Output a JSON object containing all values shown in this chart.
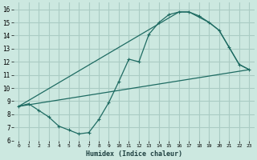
{
  "bg_color": "#cce8e0",
  "grid_color": "#aaccc4",
  "line_color": "#1e6b62",
  "xlabel": "Humidex (Indice chaleur)",
  "xlim": [
    -0.5,
    23.5
  ],
  "ylim": [
    6,
    16.5
  ],
  "xticks": [
    0,
    1,
    2,
    3,
    4,
    5,
    6,
    7,
    8,
    9,
    10,
    11,
    12,
    13,
    14,
    15,
    16,
    17,
    18,
    19,
    20,
    21,
    22,
    23
  ],
  "yticks": [
    6,
    7,
    8,
    9,
    10,
    11,
    12,
    13,
    14,
    15,
    16
  ],
  "line1_x": [
    0,
    1,
    2,
    3,
    4,
    5,
    6,
    7,
    8,
    9,
    10,
    11,
    12,
    13,
    14,
    15,
    16,
    17,
    18,
    19,
    20,
    21,
    22,
    23
  ],
  "line1_y": [
    8.6,
    8.8,
    8.3,
    7.8,
    7.1,
    6.8,
    6.5,
    6.6,
    7.6,
    8.9,
    10.5,
    12.2,
    12.0,
    14.1,
    15.0,
    15.6,
    15.8,
    15.8,
    15.5,
    15.0,
    14.4,
    13.1,
    11.8,
    11.4
  ],
  "line2_x": [
    0,
    16,
    17,
    19,
    20,
    21,
    22,
    23
  ],
  "line2_y": [
    8.6,
    15.8,
    15.8,
    15.0,
    14.4,
    13.1,
    11.8,
    11.4
  ],
  "line3_x": [
    0,
    23
  ],
  "line3_y": [
    8.6,
    11.4
  ]
}
